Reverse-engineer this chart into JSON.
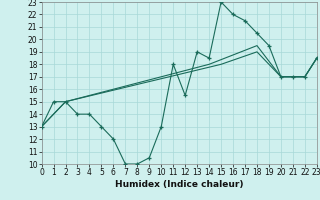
{
  "xlabel": "Humidex (Indice chaleur)",
  "bg_color": "#cff0ee",
  "line_color": "#1a6b5a",
  "grid_color": "#a8d8d8",
  "xlim": [
    0,
    23
  ],
  "ylim": [
    10,
    23
  ],
  "xticks": [
    0,
    1,
    2,
    3,
    4,
    5,
    6,
    7,
    8,
    9,
    10,
    11,
    12,
    13,
    14,
    15,
    16,
    17,
    18,
    19,
    20,
    21,
    22,
    23
  ],
  "yticks": [
    10,
    11,
    12,
    13,
    14,
    15,
    16,
    17,
    18,
    19,
    20,
    21,
    22,
    23
  ],
  "main_line_x": [
    0,
    1,
    2,
    3,
    4,
    5,
    6,
    7,
    8,
    9,
    10,
    11,
    12,
    13,
    14,
    15,
    16,
    17,
    18,
    19,
    20,
    21,
    22,
    23
  ],
  "main_line_y": [
    13,
    15,
    15,
    14,
    14,
    13,
    12,
    10,
    10,
    10.5,
    13,
    18,
    15.5,
    19,
    18.5,
    23,
    22,
    21.5,
    20.5,
    19.5,
    17,
    17,
    17,
    18.5
  ],
  "trend1_x": [
    0,
    2,
    15,
    18,
    20,
    22,
    23
  ],
  "trend1_y": [
    13,
    15,
    18,
    19,
    17,
    17,
    18.5
  ],
  "trend2_x": [
    0,
    2,
    14,
    18,
    20,
    22,
    23
  ],
  "trend2_y": [
    13,
    15,
    18,
    19.5,
    17,
    17,
    18.5
  ]
}
